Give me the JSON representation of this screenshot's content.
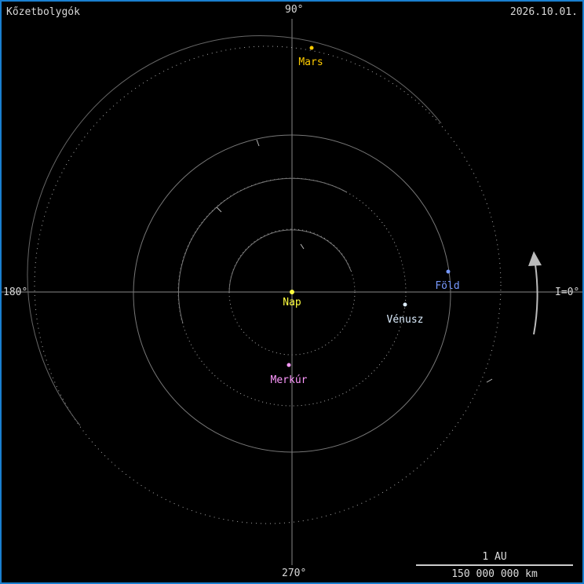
{
  "title": "Kőzetbolygók",
  "date": "2026.10.01.",
  "axes": {
    "top": "90°",
    "left": "180°",
    "bottom": "270°",
    "right": "I=0°"
  },
  "bodies": [
    {
      "name": "Nap",
      "color": "#ffff40"
    },
    {
      "name": "Merkúr",
      "color": "#ff99ff"
    },
    {
      "name": "Vénusz",
      "color": "#ddeeff"
    },
    {
      "name": "Föld",
      "color": "#7799ff"
    },
    {
      "name": "Mars",
      "color": "#ffcc00"
    }
  ],
  "scale": {
    "label": "1 AU",
    "distance": "150 000 000 km"
  },
  "direction_icon": "counterclockwise-arrow-icon"
}
